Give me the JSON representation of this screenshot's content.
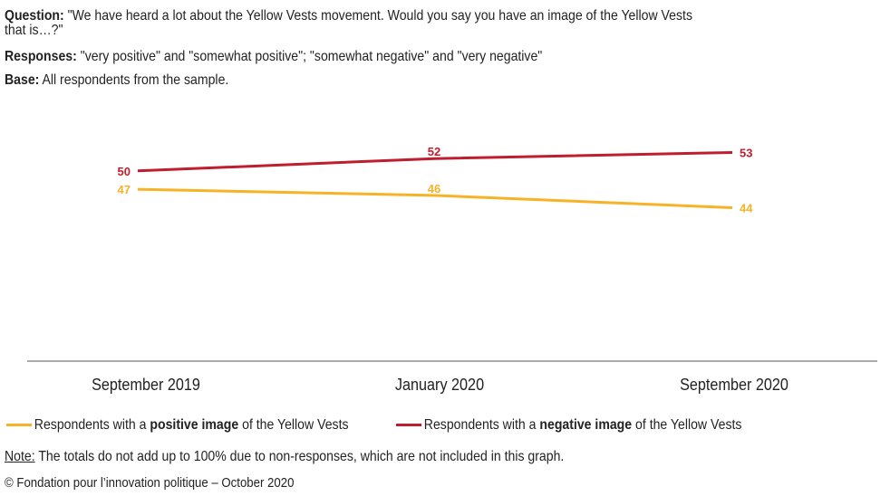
{
  "header": {
    "question_label": "Question:",
    "question_text": " \"We have heard a lot about the Yellow Vests movement. Would you say you have an image of the Yellow Vests",
    "question_text2": "that is…?\"",
    "responses_label": "Responses:",
    "responses_text": " \"very positive\" and \"somewhat positive\"; \"somewhat negative\" and \"very negative\"",
    "base_label": "Base:",
    "base_text": " All respondents from the sample."
  },
  "chart_data": {
    "type": "line",
    "categories": [
      "September 2019",
      "January 2020",
      "September 2020"
    ],
    "series": [
      {
        "name": "Respondents with a positive image of the Yellow Vests",
        "name_prefix": "Respondents with a ",
        "name_bold": "positive image",
        "name_suffix": " of the Yellow Vests",
        "color": "#F7B325",
        "values": [
          47,
          46,
          44
        ]
      },
      {
        "name": "Respondents with a negative image of the Yellow Vests",
        "name_prefix": "Respondents with a ",
        "name_bold": "negative image",
        "name_suffix": " of the Yellow Vests",
        "color": "#BE1E2D",
        "values": [
          50,
          52,
          53
        ]
      }
    ],
    "ylim": [
      19,
      60
    ],
    "grid": false,
    "legend": "bottom"
  },
  "footer": {
    "note_label": "Note:",
    "note_text": " The totals do not add up to 100% due to non-responses, which are not included in this graph.",
    "copyright": "© Fondation pour l’innovation politique – October 2020"
  }
}
